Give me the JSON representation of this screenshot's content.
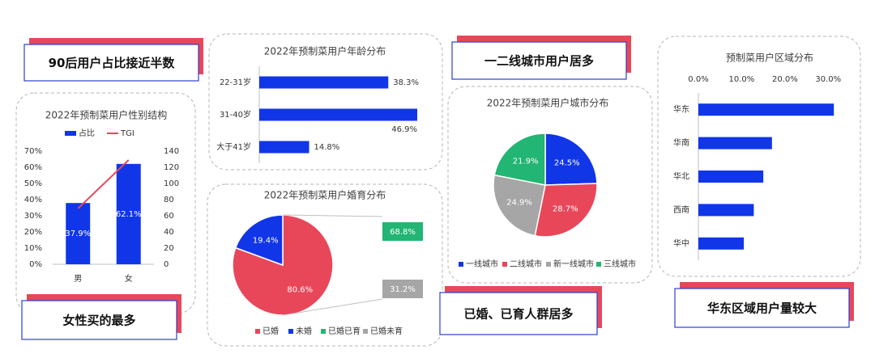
{
  "callouts": [
    "90后用户占比接近半数",
    "女性买的最多",
    "一二线城市用户居多",
    "已婚、已育人群居多",
    "华东区域用户量较大"
  ],
  "chart_data": [
    {
      "type": "bar",
      "title": "2022年预制菜用户性别结构",
      "categories": [
        "男",
        "女"
      ],
      "series": [
        {
          "name": "占比",
          "type": "bar",
          "color": "#1036e8",
          "values": [
            37.9,
            62.1
          ],
          "value_labels": [
            "37.9%",
            "62.1%"
          ]
        },
        {
          "name": "TGI",
          "type": "line",
          "axis": "y2",
          "color": "#e8475a",
          "values": [
            69,
            129
          ]
        }
      ],
      "ylim": [
        0,
        70
      ],
      "yticks": [
        {
          "value": 0,
          "label": "0%"
        },
        {
          "value": 10,
          "label": "10%"
        },
        {
          "value": 20,
          "label": "20%"
        },
        {
          "value": 30,
          "label": "30%"
        },
        {
          "value": 40,
          "label": "40%"
        },
        {
          "value": 50,
          "label": "50%"
        },
        {
          "value": 60,
          "label": "60%"
        },
        {
          "value": 70,
          "label": "70%"
        }
      ],
      "y2lim": [
        0,
        140
      ],
      "y2ticks": [
        0,
        20,
        40,
        60,
        80,
        100,
        120,
        140
      ],
      "legend": "top"
    },
    {
      "type": "barh",
      "title": "2022年预制菜用户年龄分布",
      "categories": [
        "22-31岁",
        "31-40岁",
        "大于41岁"
      ],
      "values": [
        38.3,
        46.9,
        14.8
      ],
      "value_labels": [
        "38.3%",
        "46.9%",
        "14.8%"
      ],
      "color": "#1036e8"
    },
    {
      "type": "pie",
      "title": "2022年预制菜用户婚育分布",
      "categories": [
        "已婚",
        "未婚"
      ],
      "values": [
        80.6,
        19.4
      ],
      "value_labels": [
        "80.6%",
        "19.4%"
      ],
      "colors": [
        "#e8475a",
        "#1036e8"
      ],
      "sub_categories": [
        "已婚已育",
        "已婚未育"
      ],
      "sub_values": [
        68.8,
        31.2
      ],
      "sub_value_labels": [
        "68.8%",
        "31.2%"
      ],
      "sub_colors": [
        "#22b573",
        "#a6a6a6"
      ],
      "legend": "bottom"
    },
    {
      "type": "pie",
      "title": "2022年预制菜用户城市分布",
      "categories": [
        "一线城市",
        "二线城市",
        "新一线城市",
        "三线城市"
      ],
      "values": [
        24.5,
        28.7,
        24.9,
        21.9
      ],
      "value_labels": [
        "24.5%",
        "28.7%",
        "24.9%",
        "21.9%"
      ],
      "colors": [
        "#1036e8",
        "#e8475a",
        "#a6a6a6",
        "#22b573"
      ],
      "legend": "bottom"
    },
    {
      "type": "barh",
      "title": "预制菜用户区域分布",
      "categories": [
        "华东",
        "华南",
        "华北",
        "西南",
        "华中"
      ],
      "values": [
        31.3,
        17.0,
        15.0,
        12.8,
        10.5
      ],
      "color": "#1036e8",
      "xlim": [
        0,
        35
      ],
      "xticks": [
        {
          "value": 0,
          "label": "0.0%"
        },
        {
          "value": 10,
          "label": "10.0%"
        },
        {
          "value": 20,
          "label": "20.0%"
        },
        {
          "value": 30,
          "label": "30.0%"
        }
      ]
    }
  ]
}
